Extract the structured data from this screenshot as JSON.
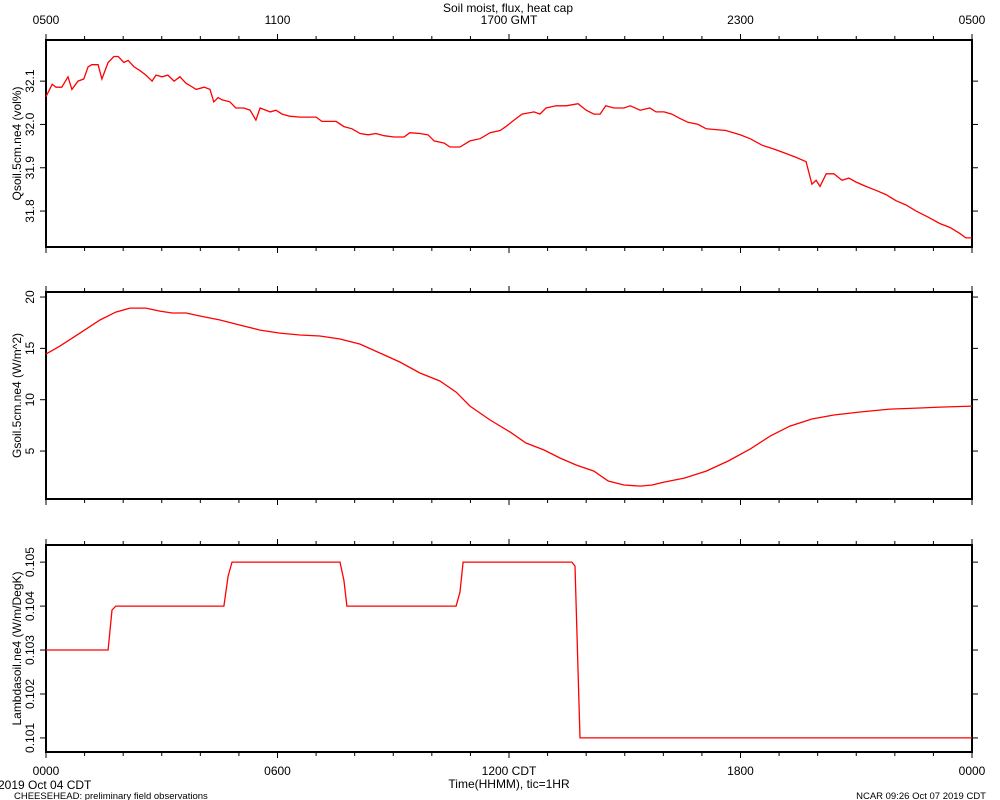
{
  "footer": {
    "left_date": "2019 Oct 04 CDT",
    "left_note": "CHEESEHEAD: preliminary field observations",
    "right": "NCAR 09:26 Oct 07 2019 CDT"
  },
  "chart_data": [
    {
      "type": "line",
      "title": "Soil moist, flux, heat cap",
      "ylabel": "Qsoil.5cm.ne4 (vol%)",
      "color": "#ff0000",
      "xlim": [
        0,
        24
      ],
      "ylim": [
        31.717,
        32.195
      ],
      "xticks": [
        0,
        6,
        12,
        18,
        24
      ],
      "x2ticks": [
        {
          "value": 0,
          "label": "0500"
        },
        {
          "value": 6,
          "label": "1100"
        },
        {
          "value": 12,
          "label": "1700 GMT"
        },
        {
          "value": 18,
          "label": "2300"
        },
        {
          "value": 24,
          "label": "0500"
        }
      ],
      "yticks": [
        31.8,
        31.9,
        {
          "value": 32,
          "label": "32.0"
        },
        32.1
      ],
      "x": [
        0,
        0.16,
        0.26,
        0.41,
        0.57,
        0.67,
        0.83,
        0.98,
        1.09,
        1.19,
        1.35,
        1.45,
        1.61,
        1.76,
        1.87,
        2.02,
        2.13,
        2.28,
        2.44,
        2.59,
        2.75,
        2.85,
        3.01,
        3.16,
        3.32,
        3.47,
        3.63,
        3.73,
        3.89,
        4.1,
        4.25,
        4.35,
        4.46,
        4.56,
        4.77,
        4.92,
        5.13,
        5.29,
        5.44,
        5.55,
        5.81,
        5.96,
        6.12,
        6.32,
        6.58,
        7.0,
        7.15,
        7.52,
        7.72,
        7.93,
        8.14,
        8.35,
        8.55,
        8.76,
        9.02,
        9.28,
        9.43,
        9.69,
        9.9,
        10.06,
        10.32,
        10.47,
        10.73,
        10.99,
        11.25,
        11.51,
        11.77,
        11.92,
        12.13,
        12.34,
        12.65,
        12.8,
        12.96,
        13.22,
        13.48,
        13.79,
        14.0,
        14.2,
        14.36,
        14.51,
        14.72,
        14.98,
        15.14,
        15.4,
        15.65,
        15.81,
        16.02,
        16.22,
        16.43,
        16.64,
        16.9,
        17.11,
        17.62,
        17.99,
        18.25,
        18.56,
        18.87,
        19.18,
        19.44,
        19.7,
        19.85,
        19.96,
        20.06,
        20.22,
        20.42,
        20.63,
        20.81,
        20.99,
        21.25,
        21.51,
        21.77,
        22.03,
        22.29,
        22.55,
        22.86,
        23.17,
        23.43,
        23.69,
        23.84,
        24
      ],
      "values": [
        32.064,
        32.093,
        32.086,
        32.086,
        32.11,
        32.081,
        32.1,
        32.105,
        32.133,
        32.138,
        32.138,
        32.105,
        32.143,
        32.157,
        32.157,
        32.143,
        32.148,
        32.133,
        32.124,
        32.114,
        32.1,
        32.114,
        32.11,
        32.114,
        32.1,
        32.11,
        32.095,
        32.09,
        32.081,
        32.086,
        32.081,
        32.052,
        32.062,
        32.057,
        32.052,
        32.038,
        32.038,
        32.033,
        32.01,
        32.038,
        32.029,
        32.033,
        32.024,
        32.019,
        32.017,
        32.017,
        32.007,
        32.007,
        31.995,
        31.99,
        31.979,
        31.976,
        31.979,
        31.974,
        31.971,
        31.971,
        31.981,
        31.979,
        31.976,
        31.962,
        31.957,
        31.948,
        31.948,
        31.962,
        31.967,
        31.981,
        31.986,
        31.995,
        32.01,
        32.024,
        32.029,
        32.024,
        32.038,
        32.043,
        32.043,
        32.048,
        32.033,
        32.024,
        32.024,
        32.043,
        32.038,
        32.038,
        32.043,
        32.033,
        32.038,
        32.029,
        32.029,
        32.024,
        32.014,
        32.005,
        32.0,
        31.99,
        31.986,
        31.976,
        31.967,
        31.952,
        31.943,
        31.933,
        31.924,
        31.914,
        31.862,
        31.871,
        31.857,
        31.886,
        31.886,
        31.871,
        31.876,
        31.867,
        31.857,
        31.848,
        31.838,
        31.824,
        31.814,
        31.8,
        31.786,
        31.771,
        31.762,
        31.748,
        31.738,
        31.738
      ]
    },
    {
      "type": "line",
      "ylabel": "Gsoil.5cm.ne4 (W/m^2)",
      "color": "#ff0000",
      "xlim": [
        0,
        24
      ],
      "ylim": [
        0.33,
        20.49
      ],
      "xticks": [
        0,
        6,
        12,
        18,
        24
      ],
      "yticks": [
        5,
        10,
        15,
        20
      ],
      "x": [
        0,
        0.36,
        0.88,
        1.4,
        1.81,
        2.18,
        2.59,
        2.95,
        3.27,
        3.63,
        3.99,
        4.51,
        5.03,
        5.55,
        6.06,
        6.58,
        7.1,
        7.62,
        8.14,
        8.66,
        9.17,
        9.69,
        10.21,
        10.63,
        10.99,
        11.51,
        12.03,
        12.44,
        12.91,
        13.32,
        13.74,
        14.2,
        14.57,
        14.98,
        15.4,
        15.71,
        16.02,
        16.54,
        17.11,
        17.68,
        18.25,
        18.77,
        19.28,
        19.85,
        20.42,
        21.1,
        21.87,
        22.65,
        23.17,
        24
      ],
      "values": [
        14.44,
        15.22,
        16.49,
        17.76,
        18.53,
        18.92,
        18.92,
        18.63,
        18.44,
        18.44,
        18.15,
        17.76,
        17.27,
        16.78,
        16.49,
        16.3,
        16.2,
        15.91,
        15.42,
        14.54,
        13.67,
        12.6,
        11.82,
        10.74,
        9.38,
        8.02,
        6.85,
        5.78,
        5.1,
        4.32,
        3.64,
        3.05,
        2.08,
        1.69,
        1.59,
        1.69,
        1.98,
        2.37,
        3.05,
        4.03,
        5.19,
        6.46,
        7.43,
        8.12,
        8.51,
        8.8,
        9.09,
        9.19,
        9.28,
        9.38
      ]
    },
    {
      "type": "line",
      "ylabel": "Lambdasoil.ne4 (W/m/DegK)",
      "xlabel": "Time(HHMM), tic=1HR",
      "color": "#ff0000",
      "xlim": [
        0,
        24
      ],
      "ylim": [
        0.10068,
        0.10539
      ],
      "xticks": [
        {
          "value": 0,
          "label": "0000"
        },
        {
          "value": 6,
          "label": "0600"
        },
        {
          "value": 12,
          "label": "1200 CDT"
        },
        {
          "value": 18,
          "label": "1800"
        },
        {
          "value": 24,
          "label": "0000"
        }
      ],
      "yticks": [
        0.101,
        0.102,
        0.103,
        0.104,
        0.105
      ],
      "x": [
        0,
        1.61,
        1.71,
        1.81,
        4.61,
        4.72,
        4.82,
        7.62,
        7.72,
        7.8,
        10.63,
        10.73,
        10.81,
        13.63,
        13.71,
        13.84,
        24
      ],
      "values": [
        0.103,
        0.103,
        0.10391,
        0.104,
        0.104,
        0.10468,
        0.105,
        0.105,
        0.10459,
        0.104,
        0.104,
        0.10432,
        0.105,
        0.105,
        0.10491,
        0.101,
        0.101
      ]
    }
  ]
}
